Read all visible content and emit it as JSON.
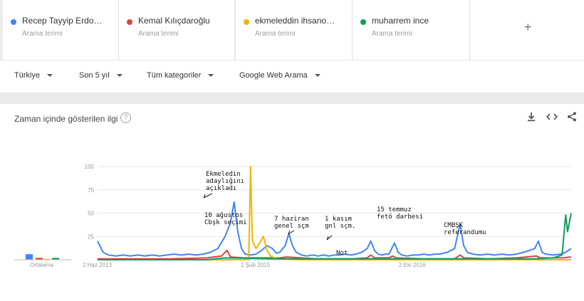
{
  "terms": [
    {
      "name": "Recep Tayyip Erdo…",
      "sub": "Arama terimi",
      "color": "#4285f4"
    },
    {
      "name": "Kemal Kılıçdaroğlu",
      "sub": "Arama terimi",
      "color": "#db4437"
    },
    {
      "name": "ekmeleddin ihsano…",
      "sub": "Arama terimi",
      "color": "#f4b400"
    },
    {
      "name": "muharrem ince",
      "sub": "Arama terimi",
      "color": "#0f9d58"
    }
  ],
  "add_term": "+",
  "filters": {
    "country": "Türkiye",
    "period": "Son 5 yıl",
    "category": "Tüm kategoriler",
    "search_type": "Google Web Arama"
  },
  "chart_title": "Zaman içinde gösterilen ilgi",
  "help_glyph": "?",
  "average_label": "Ortalama",
  "chart_data": {
    "type": "line",
    "yticks": [
      "100",
      "75",
      "50",
      "25"
    ],
    "ylim": [
      0,
      100
    ],
    "xticks": [
      "2 Haz 2013",
      "1 Şub 2015",
      "2 Eki 2016"
    ],
    "x_range": [
      0,
      260
    ],
    "averages": [
      {
        "name": "Recep Tayyip Erdoğan",
        "value": 6
      },
      {
        "name": "Kemal Kılıçdaroğlu",
        "value": 2
      },
      {
        "name": "ekmeleddin ihsanoğlu",
        "value": 1
      },
      {
        "name": "muharrem ince",
        "value": 2
      }
    ],
    "series": [
      {
        "color": "#4285f4",
        "points": [
          [
            0,
            20
          ],
          [
            3,
            8
          ],
          [
            6,
            5
          ],
          [
            10,
            4
          ],
          [
            14,
            5
          ],
          [
            18,
            4
          ],
          [
            22,
            5
          ],
          [
            26,
            4
          ],
          [
            30,
            5
          ],
          [
            34,
            4
          ],
          [
            38,
            5
          ],
          [
            42,
            6
          ],
          [
            46,
            5
          ],
          [
            50,
            6
          ],
          [
            54,
            5
          ],
          [
            58,
            6
          ],
          [
            62,
            8
          ],
          [
            66,
            12
          ],
          [
            70,
            25
          ],
          [
            73,
            40
          ],
          [
            75,
            62
          ],
          [
            77,
            30
          ],
          [
            79,
            12
          ],
          [
            81,
            6
          ],
          [
            84,
            5
          ],
          [
            87,
            6
          ],
          [
            90,
            10
          ],
          [
            93,
            15
          ],
          [
            96,
            12
          ],
          [
            98,
            7
          ],
          [
            100,
            8
          ],
          [
            103,
            15
          ],
          [
            105,
            28
          ],
          [
            107,
            15
          ],
          [
            109,
            8
          ],
          [
            112,
            5
          ],
          [
            115,
            4
          ],
          [
            118,
            5
          ],
          [
            121,
            4
          ],
          [
            124,
            5
          ],
          [
            127,
            4
          ],
          [
            130,
            5
          ],
          [
            133,
            5
          ],
          [
            136,
            6
          ],
          [
            139,
            5
          ],
          [
            142,
            6
          ],
          [
            145,
            8
          ],
          [
            148,
            12
          ],
          [
            150,
            20
          ],
          [
            152,
            10
          ],
          [
            154,
            6
          ],
          [
            156,
            5
          ],
          [
            158,
            6
          ],
          [
            160,
            6
          ],
          [
            163,
            18
          ],
          [
            165,
            8
          ],
          [
            167,
            5
          ],
          [
            170,
            4
          ],
          [
            173,
            5
          ],
          [
            176,
            5
          ],
          [
            179,
            6
          ],
          [
            182,
            5
          ],
          [
            185,
            6
          ],
          [
            188,
            6
          ],
          [
            192,
            8
          ],
          [
            196,
            12
          ],
          [
            199,
            38
          ],
          [
            201,
            15
          ],
          [
            203,
            8
          ],
          [
            206,
            6
          ],
          [
            210,
            5
          ],
          [
            214,
            6
          ],
          [
            218,
            5
          ],
          [
            222,
            6
          ],
          [
            226,
            5
          ],
          [
            230,
            6
          ],
          [
            234,
            8
          ],
          [
            237,
            10
          ],
          [
            240,
            12
          ],
          [
            242,
            20
          ],
          [
            244,
            8
          ],
          [
            246,
            6
          ],
          [
            250,
            5
          ],
          [
            254,
            6
          ],
          [
            257,
            8
          ],
          [
            260,
            12
          ]
        ]
      },
      {
        "color": "#db4437",
        "points": [
          [
            0,
            1
          ],
          [
            20,
            1
          ],
          [
            40,
            1
          ],
          [
            60,
            2
          ],
          [
            68,
            4
          ],
          [
            71,
            10
          ],
          [
            73,
            3
          ],
          [
            80,
            2
          ],
          [
            100,
            2
          ],
          [
            104,
            3
          ],
          [
            120,
            1
          ],
          [
            140,
            1
          ],
          [
            148,
            2
          ],
          [
            150,
            5
          ],
          [
            152,
            2
          ],
          [
            160,
            2
          ],
          [
            162,
            4
          ],
          [
            164,
            2
          ],
          [
            180,
            1
          ],
          [
            196,
            1
          ],
          [
            199,
            5
          ],
          [
            201,
            2
          ],
          [
            215,
            1
          ],
          [
            230,
            2
          ],
          [
            241,
            4
          ],
          [
            243,
            2
          ],
          [
            255,
            2
          ],
          [
            260,
            3
          ]
        ]
      },
      {
        "color": "#f4b400",
        "points": [
          [
            0,
            0
          ],
          [
            60,
            0
          ],
          [
            83,
            0
          ],
          [
            84,
            100
          ],
          [
            85,
            20
          ],
          [
            87,
            12
          ],
          [
            89,
            18
          ],
          [
            91,
            25
          ],
          [
            93,
            10
          ],
          [
            95,
            4
          ],
          [
            97,
            2
          ],
          [
            100,
            1
          ],
          [
            110,
            0
          ],
          [
            150,
            0
          ],
          [
            180,
            0
          ],
          [
            260,
            0
          ]
        ]
      },
      {
        "color": "#0f9d58",
        "points": [
          [
            0,
            0
          ],
          [
            60,
            0
          ],
          [
            70,
            2
          ],
          [
            100,
            1
          ],
          [
            150,
            1
          ],
          [
            200,
            1
          ],
          [
            240,
            1
          ],
          [
            250,
            2
          ],
          [
            255,
            5
          ],
          [
            257,
            48
          ],
          [
            258,
            30
          ],
          [
            260,
            50
          ]
        ]
      }
    ],
    "annotations": [
      {
        "lines": [
          "Ekmeledin",
          "adaylığını",
          "açıkladı"
        ]
      },
      {
        "lines": [
          "10 ağustos",
          "Cbşk seçimi"
        ]
      },
      {
        "lines": [
          "7 haziran",
          "genel sçm"
        ]
      },
      {
        "lines": [
          "1 kasım",
          "gnl sçm."
        ]
      },
      {
        "lines": [
          "Not"
        ]
      },
      {
        "lines": [
          "15 temmuz",
          "fetö darbesi"
        ]
      },
      {
        "lines": [
          "CMBŞK",
          "referandumu"
        ]
      }
    ]
  }
}
